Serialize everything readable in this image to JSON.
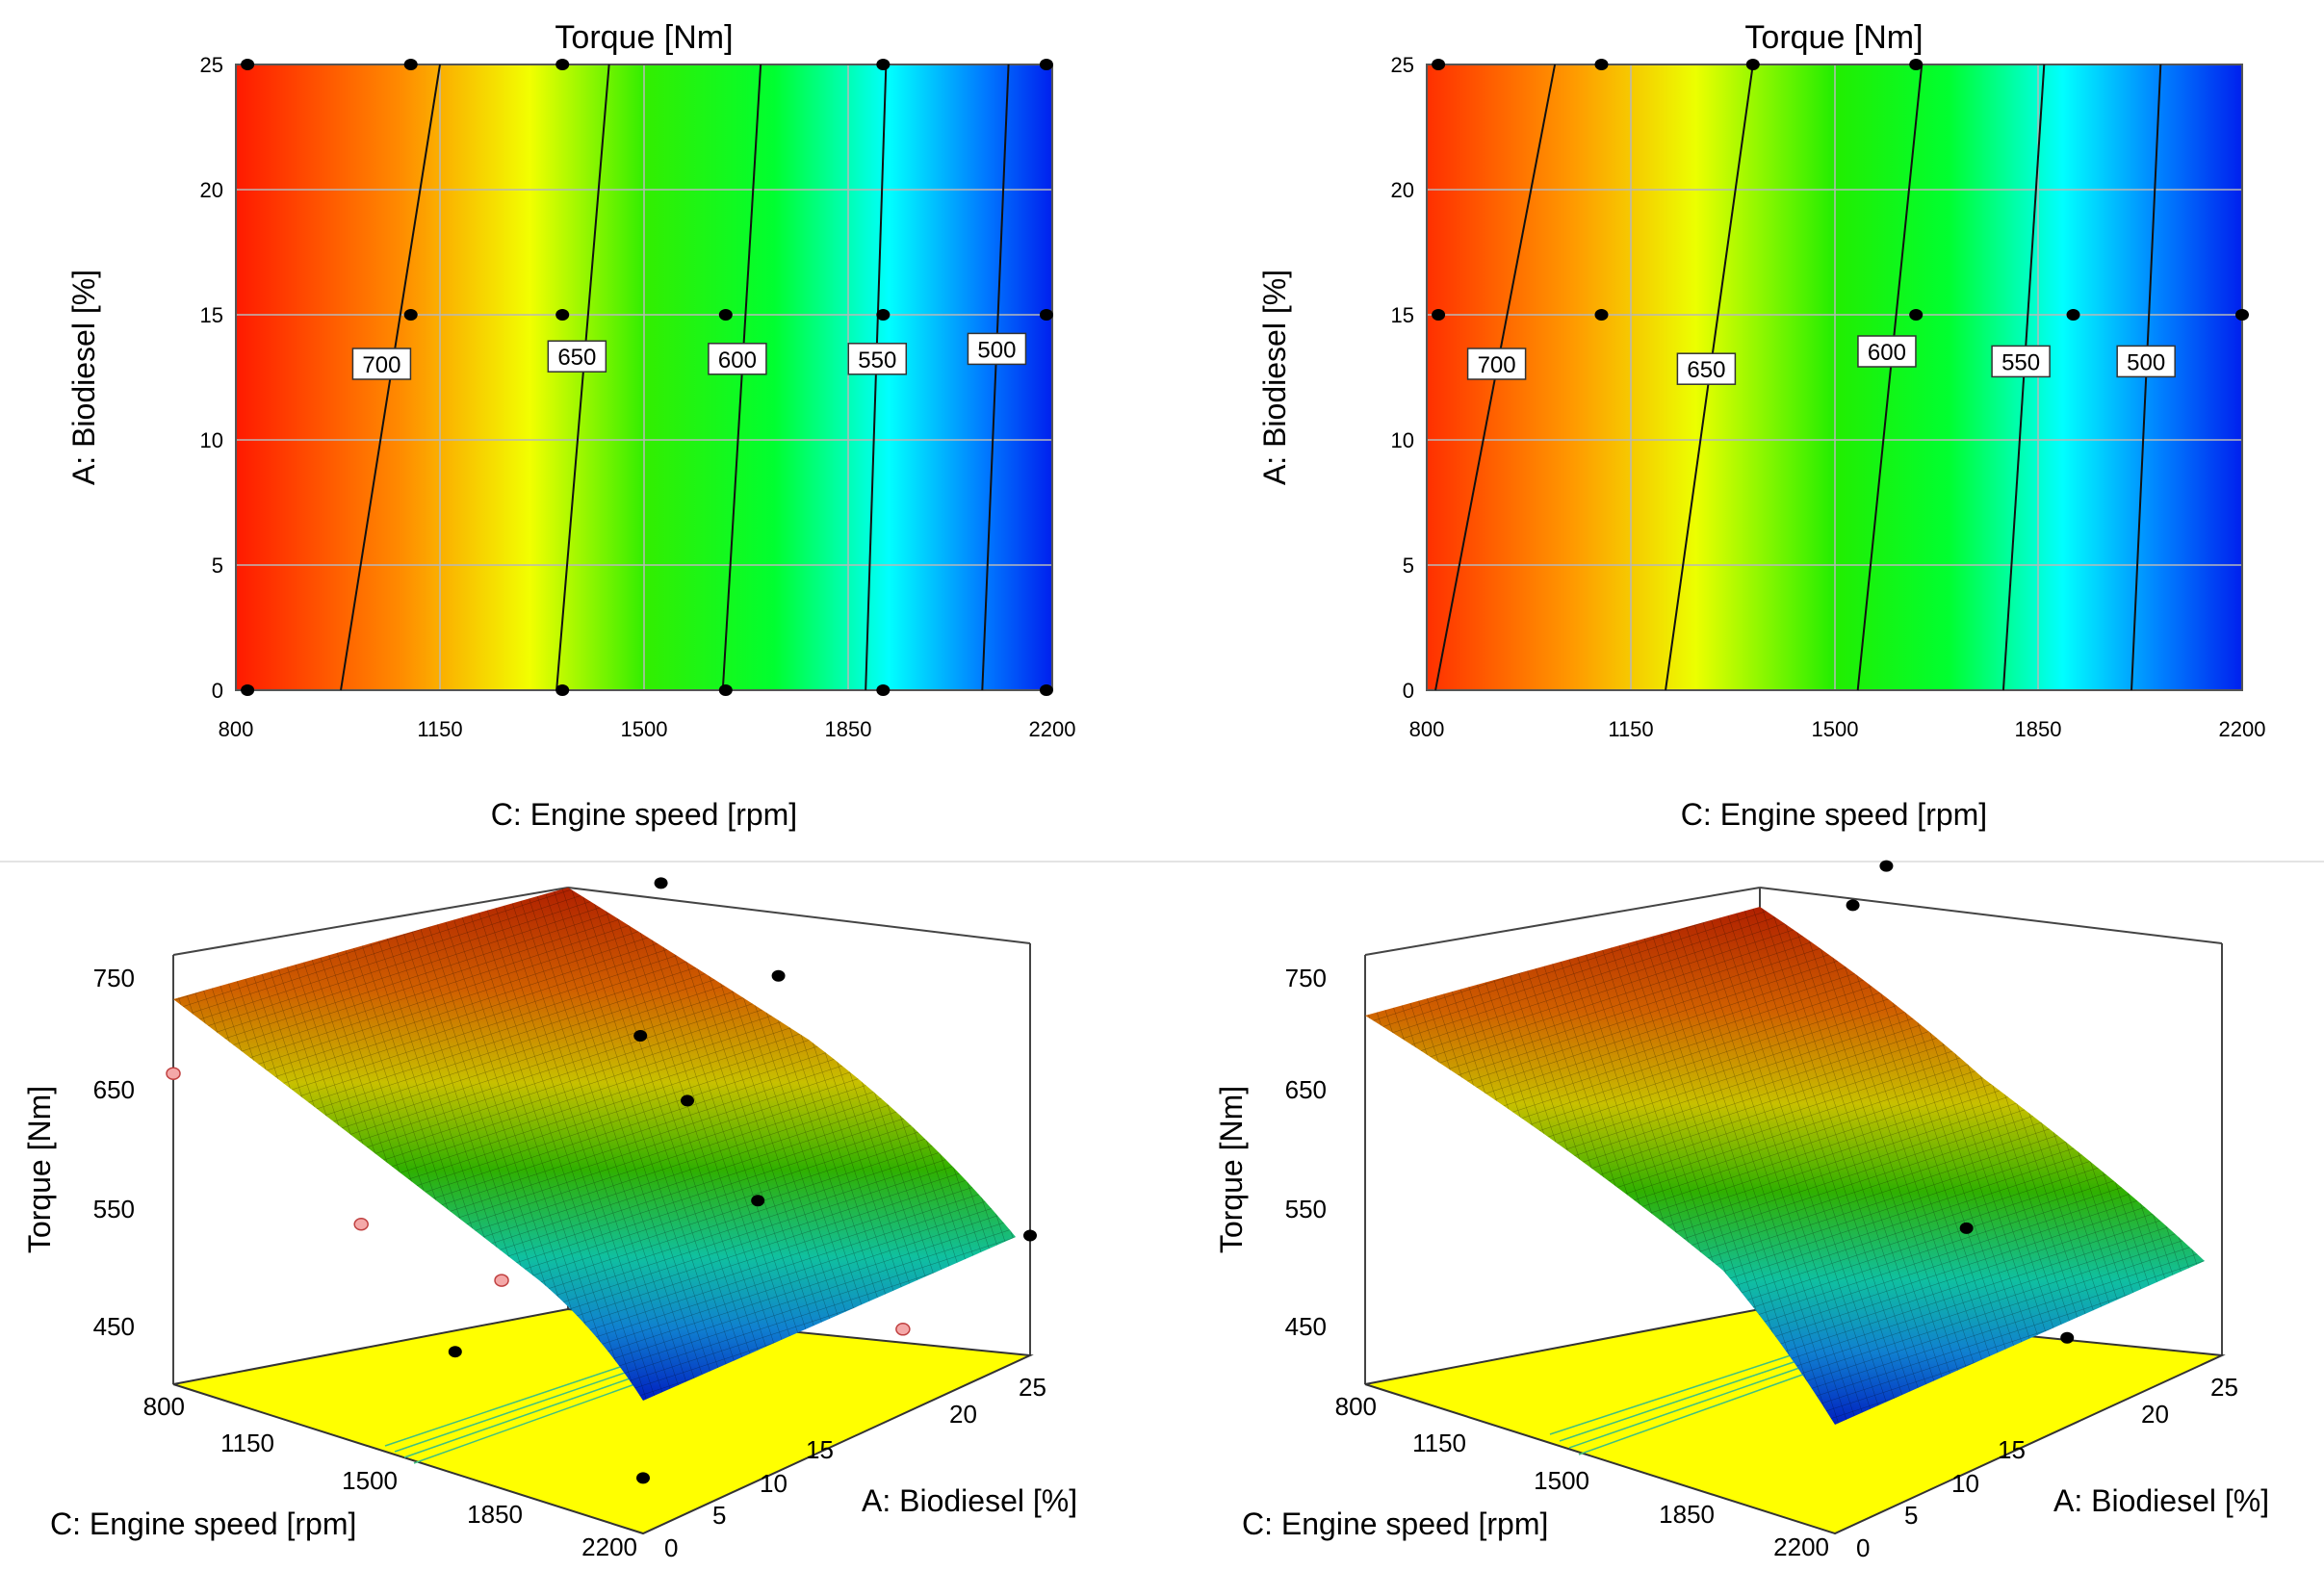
{
  "chart_data": [
    {
      "type": "contour",
      "panel": "top-left",
      "title": "Torque [Nm]",
      "xlabel": "C: Engine speed [rpm]",
      "ylabel": "A: Biodiesel [%]",
      "xlim": [
        800,
        2200
      ],
      "ylim": [
        0,
        25
      ],
      "xticks": [
        "800",
        "1150",
        "1500",
        "1850",
        "2200"
      ],
      "yticks": [
        "0",
        "5",
        "10",
        "15",
        "20",
        "25"
      ],
      "contours": [
        {
          "level": "700",
          "x_at_y0": 980,
          "x_at_y25": 1150,
          "label_x": 1050,
          "label_y": 13
        },
        {
          "level": "650",
          "x_at_y0": 1350,
          "x_at_y25": 1440,
          "label_x": 1385,
          "label_y": 13.3
        },
        {
          "level": "600",
          "x_at_y0": 1635,
          "x_at_y25": 1700,
          "label_x": 1660,
          "label_y": 13.2
        },
        {
          "level": "550",
          "x_at_y0": 1880,
          "x_at_y25": 1915,
          "label_x": 1900,
          "label_y": 13.2
        },
        {
          "level": "500",
          "x_at_y0": 2080,
          "x_at_y25": 2125,
          "label_x": 2105,
          "label_y": 13.6
        }
      ],
      "design_points": [
        {
          "x": 820,
          "y": 25
        },
        {
          "x": 1100,
          "y": 25
        },
        {
          "x": 1360,
          "y": 25
        },
        {
          "x": 1910,
          "y": 25
        },
        {
          "x": 2190,
          "y": 25
        },
        {
          "x": 1100,
          "y": 15
        },
        {
          "x": 1360,
          "y": 15
        },
        {
          "x": 1640,
          "y": 15
        },
        {
          "x": 1910,
          "y": 15
        },
        {
          "x": 2190,
          "y": 15
        },
        {
          "x": 820,
          "y": 0
        },
        {
          "x": 1360,
          "y": 0
        },
        {
          "x": 1640,
          "y": 0
        },
        {
          "x": 1910,
          "y": 0
        },
        {
          "x": 2190,
          "y": 0
        }
      ]
    },
    {
      "type": "contour",
      "panel": "top-right",
      "title": "Torque [Nm]",
      "xlabel": "C: Engine speed [rpm]",
      "ylabel": "A: Biodiesel [%]",
      "xlim": [
        800,
        2200
      ],
      "ylim": [
        0,
        25
      ],
      "xticks": [
        "800",
        "1150",
        "1500",
        "1850",
        "2200"
      ],
      "yticks": [
        "0",
        "5",
        "10",
        "15",
        "20",
        "25"
      ],
      "contours": [
        {
          "level": "700",
          "x_at_y0": 815,
          "x_at_y25": 1020,
          "label_x": 920,
          "label_y": 13
        },
        {
          "level": "650",
          "x_at_y0": 1210,
          "x_at_y25": 1360,
          "label_x": 1280,
          "label_y": 12.8
        },
        {
          "level": "600",
          "x_at_y0": 1540,
          "x_at_y25": 1650,
          "label_x": 1590,
          "label_y": 13.5
        },
        {
          "level": "550",
          "x_at_y0": 1790,
          "x_at_y25": 1860,
          "label_x": 1820,
          "label_y": 13.1
        },
        {
          "level": "500",
          "x_at_y0": 2010,
          "x_at_y25": 2060,
          "label_x": 2035,
          "label_y": 13.1
        }
      ],
      "design_points": [
        {
          "x": 820,
          "y": 25
        },
        {
          "x": 1100,
          "y": 25
        },
        {
          "x": 1360,
          "y": 25
        },
        {
          "x": 1640,
          "y": 25
        },
        {
          "x": 820,
          "y": 15
        },
        {
          "x": 1100,
          "y": 15
        },
        {
          "x": 1640,
          "y": 15
        },
        {
          "x": 1910,
          "y": 15
        },
        {
          "x": 2200,
          "y": 15
        }
      ]
    },
    {
      "type": "surface3d",
      "panel": "bottom-left",
      "zlabel": "Torque [Nm]",
      "xlabel": "C: Engine speed [rpm]",
      "ylabel": "A: Biodiesel [%]",
      "zticks": [
        "450",
        "550",
        "650",
        "750"
      ],
      "xticks": [
        "800",
        "1150",
        "1500",
        "1850",
        "2200"
      ],
      "yticks": [
        "0",
        "5",
        "10",
        "15",
        "20",
        "25"
      ],
      "zlim": [
        420,
        780
      ],
      "points_above": [
        {
          "speed": 1100,
          "biodiesel": 25,
          "torque": 740
        },
        {
          "speed": 1450,
          "biodiesel": 25,
          "torque": 690
        },
        {
          "speed": 1500,
          "biodiesel": 15,
          "torque": 705
        },
        {
          "speed": 1640,
          "biodiesel": 15,
          "torque": 660
        },
        {
          "speed": 1850,
          "biodiesel": 15,
          "torque": 590
        },
        {
          "speed": 2200,
          "biodiesel": 25,
          "torque": 528
        },
        {
          "speed": 1640,
          "biodiesel": 0,
          "torque": 530
        },
        {
          "speed": 2200,
          "biodiesel": 0,
          "torque": 470
        }
      ],
      "points_below": [
        {
          "speed": 800,
          "biodiesel": 0,
          "torque": 700
        },
        {
          "speed": 1360,
          "biodiesel": 0,
          "torque": 618
        },
        {
          "speed": 1640,
          "biodiesel": 3,
          "torque": 575
        },
        {
          "speed": 2190,
          "biodiesel": 17,
          "torque": 494
        }
      ]
    },
    {
      "type": "surface3d",
      "panel": "bottom-right",
      "zlabel": "Torque [Nm]",
      "xlabel": "C: Engine speed [rpm]",
      "ylabel": "A: Biodiesel [%]",
      "zticks": [
        "450",
        "550",
        "650",
        "750"
      ],
      "xticks": [
        "800",
        "1150",
        "1500",
        "1850",
        "2200"
      ],
      "yticks": [
        "0",
        "5",
        "10",
        "15",
        "20",
        "25"
      ],
      "zlim": [
        420,
        780
      ],
      "points_above": [
        {
          "speed": 1100,
          "biodiesel": 25,
          "torque": 720
        },
        {
          "speed": 1200,
          "biodiesel": 25,
          "torque": 765
        },
        {
          "speed": 1900,
          "biodiesel": 15,
          "torque": 570
        },
        {
          "speed": 2200,
          "biodiesel": 15,
          "torque": 500
        }
      ],
      "points_below": []
    }
  ]
}
